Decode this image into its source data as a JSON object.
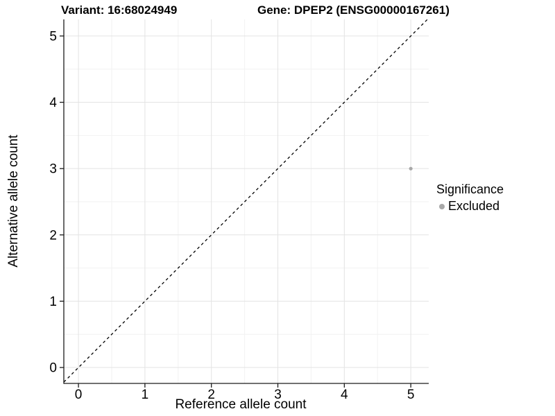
{
  "figure": {
    "title_left": "Variant: 16:68024949",
    "title_right": "Gene: DPEP2 (ENSG00000167261)"
  },
  "chart_data": {
    "type": "scatter",
    "title_left": "Variant: 16:68024949",
    "title_right": "Gene: DPEP2 (ENSG00000167261)",
    "xlabel": "Reference allele count",
    "ylabel": "Alternative allele count",
    "xlim": [
      -0.22,
      5.27
    ],
    "ylim": [
      -0.24,
      5.25
    ],
    "xticks": [
      0,
      1,
      2,
      3,
      4,
      5
    ],
    "yticks": [
      0,
      1,
      2,
      3,
      4,
      5
    ],
    "minor_grid_step": 0.5,
    "grid": "major+minor",
    "reference_line": {
      "type": "identity y=x",
      "style": "dashed",
      "color": "#000000"
    },
    "series": [
      {
        "name": "Excluded",
        "color": "#a8a8a8",
        "points": [
          {
            "x": 5,
            "y": 3
          }
        ]
      }
    ],
    "legend": {
      "title": "Significance",
      "position": "right",
      "items": [
        {
          "label": "Excluded",
          "color": "#a8a8a8"
        }
      ]
    },
    "colors": {
      "major_grid": "#e3e3e3",
      "minor_grid": "#f2f2f2",
      "axis_line": "#1a1a1a",
      "point": "#a8a8a8"
    }
  }
}
